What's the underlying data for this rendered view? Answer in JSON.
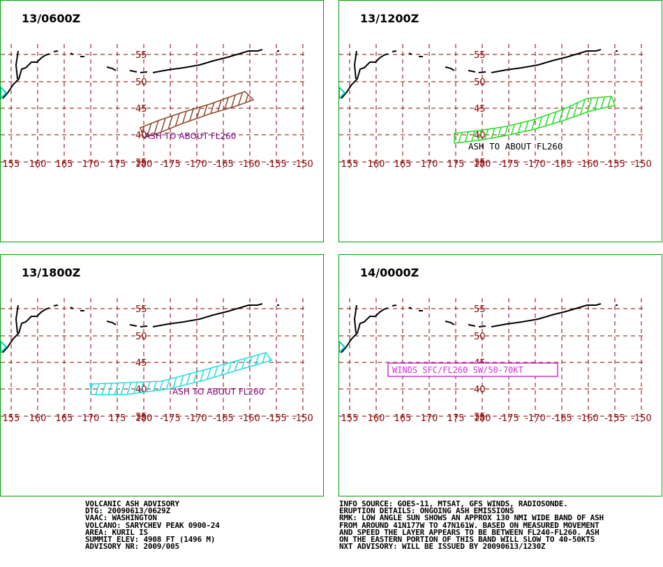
{
  "panels": [
    {
      "valid_time": "13/0600Z",
      "ash_label": "ASH TO ABOUT FL260",
      "ash_color": "#8b4a2b",
      "label_color": "#800080"
    },
    {
      "valid_time": "13/1200Z",
      "ash_label": "ASH  TO  ABOUT  FL260",
      "ash_color": "#22dd22",
      "label_color": "#000000"
    },
    {
      "valid_time": "13/1800Z",
      "ash_label": "ASH TO ABOUT FL260",
      "ash_color": "#22dddd",
      "label_color": "#800080"
    },
    {
      "valid_time": "14/0000Z",
      "winds_label": "WINDS SFC/FL260 SW/50-70KT",
      "winds_color": "#cc33cc"
    }
  ],
  "grid": {
    "lon_labels": [
      "155",
      "160",
      "165",
      "170",
      "175",
      "180",
      "-175",
      "-170",
      "-165",
      "-160",
      "-155",
      "-150"
    ],
    "lat_labels": [
      "55",
      "50",
      "45",
      "40",
      "35"
    ],
    "grid_color": "#8b0000"
  },
  "volcano_marker_color": "#00cccc",
  "advisory_left": [
    "VOLCANIC ASH ADVISORY",
    "DTG: 20090613/0629Z",
    "VAAC: WASHINGTON",
    "VOLCANO: SARYCHEV PEAK 0900-24",
    "AREA: KURIL IS",
    "SUMMIT ELEV: 4908 FT (1496 M)",
    "ADVISORY NR: 2009/005"
  ],
  "advisory_right": [
    "INFO SOURCE: GOES-11, MTSAT, GFS WINDS, RADIOSONDE.",
    "ERUPTION DETAILS: ONGOING ASH EMISSIONS",
    "RMK: LOW ANGLE SUN SHOWS AN APPROX 130 NMI WIDE BAND OF ASH",
    "FROM AROUND 41N177W TO 47N161W. BASED ON MEASURED MOVEMENT",
    "AND SPEED THE LAYER APPEARS TO BE BETWEEN FL240-FL260. ASH",
    "ON THE EASTERN PORTION OF THIS BAND WILL SLOW TO 40-50KTS",
    "NXT ADVISORY: WILL BE ISSUED BY 20090613/1230Z"
  ]
}
